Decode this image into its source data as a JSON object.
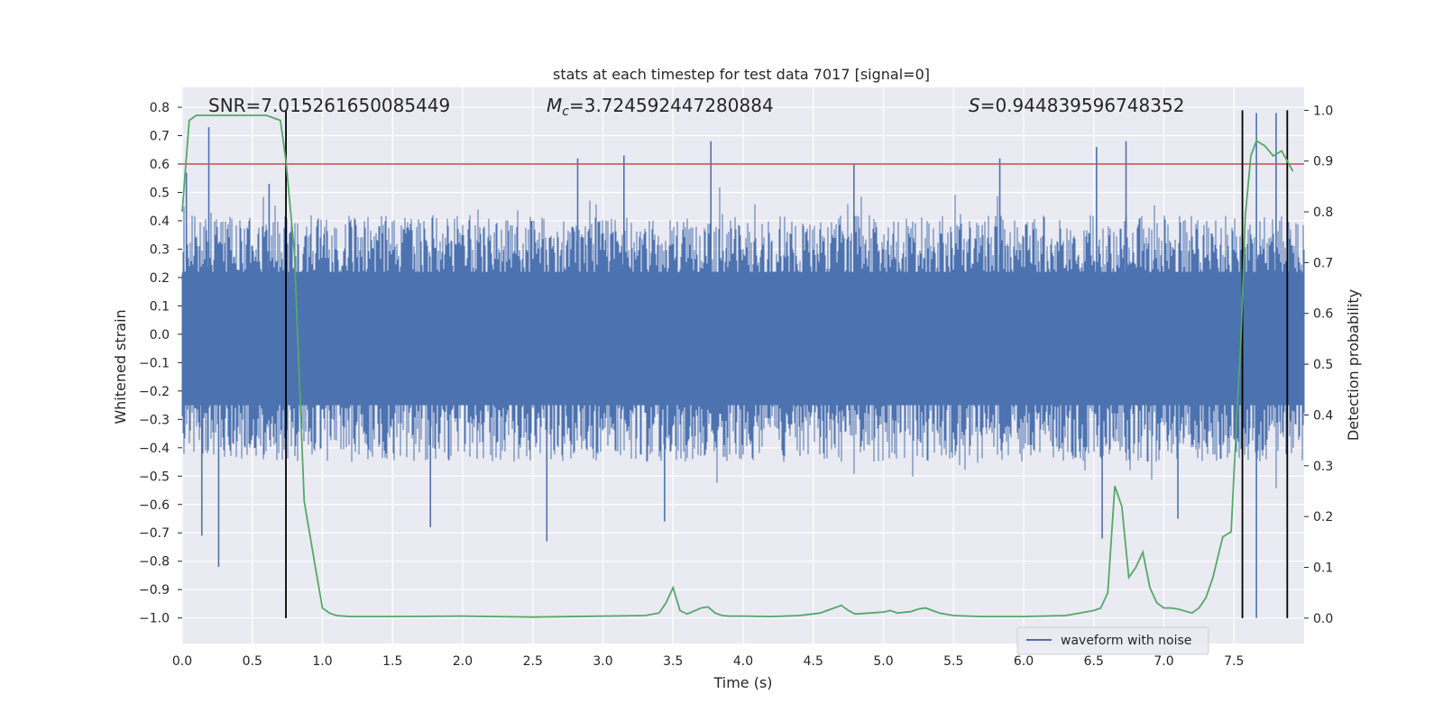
{
  "chart_data": {
    "type": "line",
    "title": "stats at each timestep for test data 7017 [signal=0]",
    "xlabel": "Time (s)",
    "ylabel": "Whitened strain",
    "ylabel_right": "Detection probability",
    "xlim": [
      0.0,
      8.0
    ],
    "ylim": [
      -1.09,
      0.87
    ],
    "ylim_right": [
      -0.05,
      1.045
    ],
    "x_ticks": [
      "0.0",
      "0.5",
      "1.0",
      "1.5",
      "2.0",
      "2.5",
      "3.0",
      "3.5",
      "4.0",
      "4.5",
      "5.0",
      "5.5",
      "6.0",
      "6.5",
      "7.0",
      "7.5"
    ],
    "y_ticks": [
      "0.8",
      "0.7",
      "0.6",
      "0.5",
      "0.4",
      "0.3",
      "0.2",
      "0.1",
      "0.0",
      "−0.1",
      "−0.2",
      "−0.3",
      "−0.4",
      "−0.5",
      "−0.6",
      "−0.7",
      "−0.8",
      "−0.9",
      "−1.0"
    ],
    "y_ticks_right": [
      "1.0",
      "0.9",
      "0.8",
      "0.7",
      "0.6",
      "0.5",
      "0.4",
      "0.3",
      "0.2",
      "0.1",
      "0.0"
    ],
    "annotations": {
      "snr": "SNR=7.015261650085449",
      "mc_prefix": "M",
      "mc_sub": "c",
      "mc_value": "=3.724592447280884",
      "s_prefix": "S",
      "s_value": "=0.944839596748352"
    },
    "threshold": 0.6,
    "vlines": [
      0.74,
      7.56,
      7.88
    ],
    "legend": {
      "entries": [
        "waveform with noise"
      ],
      "placement": "lower-right"
    },
    "grid": true,
    "waveform": {
      "name": "waveform with noise",
      "envelope_upper": 0.42,
      "envelope_lower": -0.45,
      "core_upper": 0.22,
      "core_lower": -0.25,
      "spikes": [
        {
          "x": 0.03,
          "y": 0.57
        },
        {
          "x": 0.19,
          "y": 0.73
        },
        {
          "x": 0.26,
          "y": -0.82
        },
        {
          "x": 0.14,
          "y": -0.71
        },
        {
          "x": 0.62,
          "y": 0.53
        },
        {
          "x": 2.82,
          "y": 0.62
        },
        {
          "x": 3.15,
          "y": 0.63
        },
        {
          "x": 3.77,
          "y": 0.68
        },
        {
          "x": 4.79,
          "y": 0.6
        },
        {
          "x": 5.83,
          "y": 0.62
        },
        {
          "x": 6.52,
          "y": 0.66
        },
        {
          "x": 6.73,
          "y": 0.68
        },
        {
          "x": 7.66,
          "y": 0.78
        },
        {
          "x": 7.8,
          "y": 0.78
        },
        {
          "x": 7.66,
          "y": -1.0
        },
        {
          "x": 2.6,
          "y": -0.73
        },
        {
          "x": 1.77,
          "y": -0.68
        },
        {
          "x": 6.56,
          "y": -0.72
        },
        {
          "x": 3.44,
          "y": -0.66
        },
        {
          "x": 7.1,
          "y": -0.65
        }
      ]
    },
    "probability": {
      "x": [
        0.0,
        0.05,
        0.1,
        0.2,
        0.3,
        0.4,
        0.5,
        0.6,
        0.7,
        0.74,
        0.8,
        0.87,
        0.95,
        1.0,
        1.05,
        1.1,
        1.2,
        1.5,
        2.0,
        2.5,
        3.0,
        3.3,
        3.4,
        3.45,
        3.5,
        3.55,
        3.6,
        3.7,
        3.75,
        3.8,
        3.85,
        3.9,
        4.0,
        4.2,
        4.4,
        4.55,
        4.6,
        4.7,
        4.75,
        4.8,
        4.9,
        5.0,
        5.05,
        5.1,
        5.2,
        5.25,
        5.3,
        5.4,
        5.5,
        5.7,
        6.0,
        6.3,
        6.4,
        6.5,
        6.55,
        6.6,
        6.65,
        6.7,
        6.75,
        6.8,
        6.85,
        6.9,
        6.95,
        7.0,
        7.05,
        7.1,
        7.2,
        7.25,
        7.3,
        7.35,
        7.42,
        7.48,
        7.52,
        7.55,
        7.58,
        7.62,
        7.66,
        7.72,
        7.78,
        7.84,
        7.88,
        7.92
      ],
      "y": [
        0.8,
        0.98,
        0.99,
        0.99,
        0.99,
        0.99,
        0.99,
        0.99,
        0.98,
        0.9,
        0.72,
        0.23,
        0.1,
        0.02,
        0.01,
        0.005,
        0.003,
        0.003,
        0.004,
        0.002,
        0.004,
        0.005,
        0.01,
        0.03,
        0.06,
        0.015,
        0.008,
        0.02,
        0.022,
        0.01,
        0.005,
        0.004,
        0.004,
        0.003,
        0.005,
        0.01,
        0.015,
        0.025,
        0.015,
        0.008,
        0.01,
        0.012,
        0.015,
        0.01,
        0.013,
        0.018,
        0.02,
        0.01,
        0.005,
        0.003,
        0.003,
        0.005,
        0.01,
        0.015,
        0.02,
        0.05,
        0.26,
        0.22,
        0.08,
        0.1,
        0.13,
        0.06,
        0.03,
        0.02,
        0.02,
        0.018,
        0.01,
        0.02,
        0.04,
        0.08,
        0.16,
        0.17,
        0.4,
        0.55,
        0.79,
        0.91,
        0.94,
        0.93,
        0.91,
        0.92,
        0.9,
        0.88
      ]
    },
    "colors": {
      "background": "#eaeaf2",
      "grid": "#ffffff",
      "waveform": "#4c72b0",
      "probability": "#55a868",
      "threshold": "#c44e52",
      "vline": "#000000"
    }
  }
}
